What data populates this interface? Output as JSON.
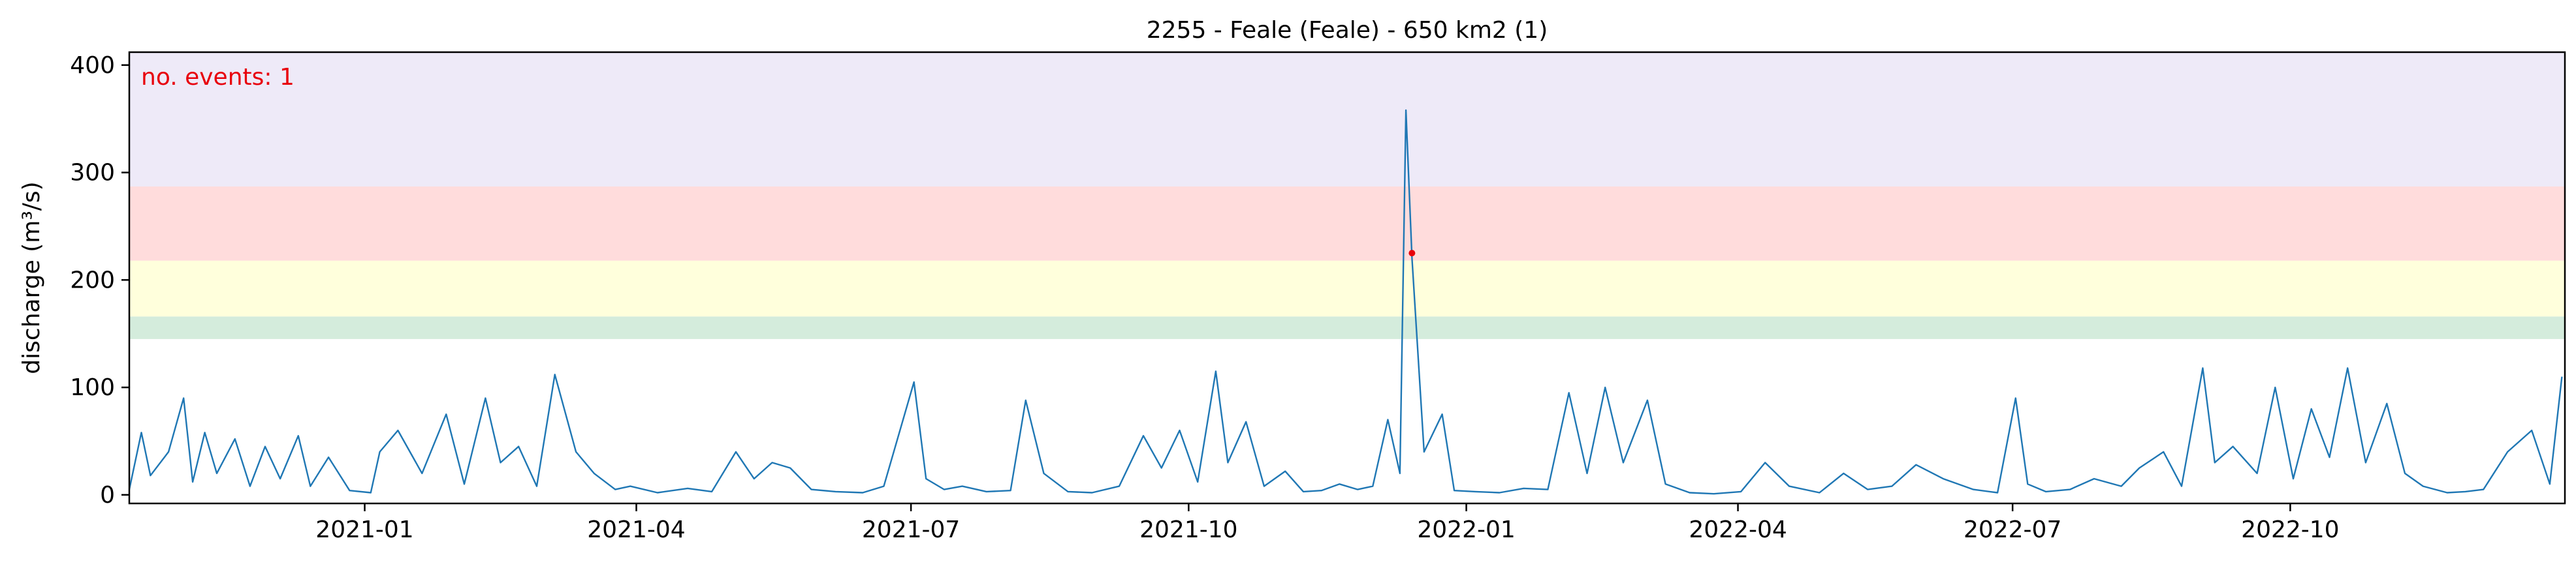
{
  "chart_data": {
    "type": "line",
    "title": "2255 - Feale (Feale) - 650 km2 (1)",
    "ylabel": "discharge (m³/s)",
    "xlabel": "",
    "xlim": [
      "2020-10-15",
      "2022-12-31"
    ],
    "ylim": [
      -8,
      412
    ],
    "yticks": [
      0,
      100,
      200,
      300,
      400
    ],
    "xticks": [
      "2021-01",
      "2021-04",
      "2021-07",
      "2021-10",
      "2022-01",
      "2022-04",
      "2022-07",
      "2022-10"
    ],
    "grid": false,
    "annotation": {
      "text": "no. events: 1",
      "color": "#e8000b",
      "placement": "top-left"
    },
    "bands": [
      {
        "y0": 145,
        "y1": 166,
        "color": "#d4ecdc"
      },
      {
        "y0": 166,
        "y1": 218,
        "color": "#ffffdc"
      },
      {
        "y0": 218,
        "y1": 287,
        "color": "#ffdcdc"
      },
      {
        "y0": 287,
        "y1": 412,
        "color": "#eeeaf8"
      }
    ],
    "series": [
      {
        "color": "#1f77b4",
        "x": [
          "2020-10-15",
          "2020-10-19",
          "2020-10-22",
          "2020-10-28",
          "2020-11-02",
          "2020-11-05",
          "2020-11-09",
          "2020-11-13",
          "2020-11-19",
          "2020-11-24",
          "2020-11-29",
          "2020-12-04",
          "2020-12-10",
          "2020-12-14",
          "2020-12-20",
          "2020-12-27",
          "2021-01-03",
          "2021-01-06",
          "2021-01-12",
          "2021-01-20",
          "2021-01-28",
          "2021-02-03",
          "2021-02-10",
          "2021-02-15",
          "2021-02-21",
          "2021-02-27",
          "2021-03-05",
          "2021-03-12",
          "2021-03-18",
          "2021-03-25",
          "2021-03-30",
          "2021-04-08",
          "2021-04-18",
          "2021-04-26",
          "2021-05-04",
          "2021-05-10",
          "2021-05-16",
          "2021-05-22",
          "2021-05-29",
          "2021-06-06",
          "2021-06-15",
          "2021-06-22",
          "2021-07-02",
          "2021-07-06",
          "2021-07-12",
          "2021-07-18",
          "2021-07-26",
          "2021-08-03",
          "2021-08-08",
          "2021-08-14",
          "2021-08-22",
          "2021-08-30",
          "2021-09-08",
          "2021-09-16",
          "2021-09-22",
          "2021-09-28",
          "2021-10-04",
          "2021-10-10",
          "2021-10-14",
          "2021-10-20",
          "2021-10-26",
          "2021-11-02",
          "2021-11-08",
          "2021-11-14",
          "2021-11-20",
          "2021-11-26",
          "2021-12-01",
          "2021-12-06",
          "2021-12-10",
          "2021-12-12",
          "2021-12-14",
          "2021-12-18",
          "2021-12-24",
          "2021-12-28",
          "2022-01-04",
          "2022-01-12",
          "2022-01-20",
          "2022-01-28",
          "2022-02-04",
          "2022-02-10",
          "2022-02-16",
          "2022-02-22",
          "2022-03-02",
          "2022-03-08",
          "2022-03-16",
          "2022-03-24",
          "2022-04-02",
          "2022-04-10",
          "2022-04-18",
          "2022-04-28",
          "2022-05-06",
          "2022-05-14",
          "2022-05-22",
          "2022-05-30",
          "2022-06-08",
          "2022-06-18",
          "2022-06-26",
          "2022-07-02",
          "2022-07-06",
          "2022-07-12",
          "2022-07-20",
          "2022-07-28",
          "2022-08-06",
          "2022-08-12",
          "2022-08-20",
          "2022-08-26",
          "2022-09-02",
          "2022-09-06",
          "2022-09-12",
          "2022-09-20",
          "2022-09-26",
          "2022-10-02",
          "2022-10-08",
          "2022-10-14",
          "2022-10-20",
          "2022-10-26",
          "2022-11-02",
          "2022-11-08",
          "2022-11-14",
          "2022-11-22",
          "2022-11-28",
          "2022-12-04",
          "2022-12-12",
          "2022-12-20",
          "2022-12-26",
          "2022-12-30"
        ],
        "y": [
          5,
          58,
          18,
          40,
          90,
          12,
          58,
          20,
          52,
          8,
          45,
          15,
          55,
          8,
          35,
          4,
          2,
          40,
          60,
          20,
          75,
          10,
          90,
          30,
          45,
          8,
          112,
          40,
          20,
          5,
          8,
          2,
          6,
          3,
          40,
          15,
          30,
          25,
          5,
          3,
          2,
          8,
          105,
          15,
          5,
          8,
          3,
          4,
          88,
          20,
          3,
          2,
          8,
          55,
          25,
          60,
          12,
          115,
          30,
          68,
          8,
          22,
          3,
          4,
          10,
          5,
          8,
          70,
          20,
          358,
          220,
          40,
          75,
          4,
          3,
          2,
          6,
          5,
          95,
          20,
          100,
          30,
          88,
          10,
          2,
          1,
          3,
          30,
          8,
          2,
          20,
          5,
          8,
          28,
          15,
          5,
          2,
          90,
          10,
          3,
          5,
          15,
          8,
          25,
          40,
          8,
          118,
          30,
          45,
          20,
          100,
          15,
          80,
          35,
          118,
          30,
          85,
          20,
          8,
          2,
          3,
          5,
          40,
          60,
          10,
          110
        ]
      }
    ],
    "events": [
      {
        "x": "2021-12-14",
        "y": 225,
        "color": "#e8000b"
      }
    ]
  }
}
